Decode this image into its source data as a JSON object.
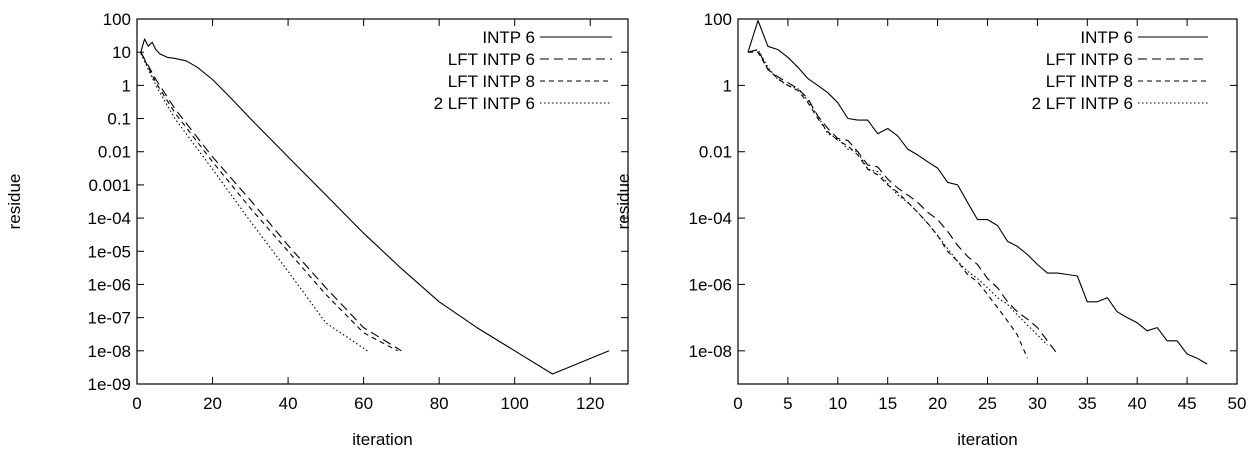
{
  "chart_data": [
    {
      "type": "line",
      "title": "",
      "xlabel": "iteration",
      "ylabel": "residue",
      "xlim": [
        0,
        130
      ],
      "xticks": [
        0,
        20,
        40,
        60,
        80,
        100,
        120
      ],
      "yscale": "log",
      "ylim": [
        1e-09,
        100
      ],
      "ytick_labels": [
        "100",
        "10",
        "1",
        "0.1",
        "0.01",
        "0.001",
        "1e-04",
        "1e-05",
        "1e-06",
        "1e-07",
        "1e-08",
        "1e-09"
      ],
      "grid": false,
      "legend": "top-right",
      "series": [
        {
          "name": "INTP 6",
          "style": "solid",
          "x": [
            1,
            2,
            3,
            4,
            5,
            6,
            8,
            10,
            13,
            16,
            20,
            25,
            30,
            40,
            50,
            60,
            70,
            80,
            90,
            100,
            110,
            125
          ],
          "y": [
            10,
            25,
            15,
            20,
            12,
            9,
            7,
            6.5,
            5.5,
            3.5,
            1.5,
            0.4,
            0.1,
            0.007,
            0.0005,
            3.5e-05,
            3e-06,
            3e-07,
            5e-08,
            1e-08,
            2e-09,
            1e-08
          ]
        },
        {
          "name": "LFT INTP 6",
          "style": "long-dash",
          "x": [
            1,
            5,
            10,
            20,
            30,
            40,
            50,
            60,
            70
          ],
          "y": [
            10,
            1.5,
            0.2,
            0.007,
            0.00035,
            1.5e-05,
            8e-07,
            5e-08,
            1e-08
          ]
        },
        {
          "name": "LFT INTP 8",
          "style": "short-dash",
          "x": [
            1,
            5,
            10,
            20,
            30,
            40,
            50,
            60,
            69
          ],
          "y": [
            10,
            1.2,
            0.15,
            0.005,
            0.0002,
            1e-05,
            5e-07,
            3.5e-08,
            1e-08
          ]
        },
        {
          "name": "2 LFT INTP 6",
          "style": "dotted",
          "x": [
            1,
            5,
            10,
            20,
            30,
            40,
            50,
            61
          ],
          "y": [
            9,
            1,
            0.1,
            0.003,
            8e-05,
            2.5e-06,
            7e-08,
            1e-08
          ]
        }
      ]
    },
    {
      "type": "line",
      "title": "",
      "xlabel": "iteration",
      "ylabel": "residue",
      "xlim": [
        0,
        50
      ],
      "xticks": [
        0,
        5,
        10,
        15,
        20,
        25,
        30,
        35,
        40,
        45,
        50
      ],
      "yscale": "log",
      "ylim": [
        1e-09,
        100
      ],
      "ytick_values": [
        100,
        1,
        0.01,
        0.0001,
        1e-06,
        1e-08
      ],
      "ytick_labels": [
        "100",
        "1",
        "0.01",
        "1e-04",
        "1e-06",
        "1e-08"
      ],
      "grid": false,
      "legend": "top-right",
      "series": [
        {
          "name": "INTP 6",
          "style": "solid",
          "x": [
            1,
            2,
            3,
            4,
            5,
            6,
            7,
            8,
            9,
            10,
            11,
            12,
            13,
            14,
            15,
            16,
            17,
            18,
            19,
            20,
            21,
            22,
            23,
            24,
            25,
            26,
            27,
            28,
            29,
            30,
            31,
            32,
            33,
            34,
            35,
            36,
            37,
            38,
            39,
            40,
            41,
            42,
            43,
            44,
            45,
            46,
            47
          ],
          "y": [
            10,
            90,
            15,
            12,
            7,
            3.5,
            1.6,
            1,
            0.6,
            0.3,
            0.1,
            0.09,
            0.09,
            0.035,
            0.05,
            0.03,
            0.012,
            0.008,
            0.005,
            0.0032,
            0.0012,
            0.001,
            0.0003,
            9e-05,
            9e-05,
            6e-05,
            2e-05,
            1.4e-05,
            8e-06,
            4e-06,
            2.2e-06,
            2.2e-06,
            2e-06,
            1.8e-06,
            3e-07,
            3e-07,
            4e-07,
            1.5e-07,
            1e-07,
            7e-08,
            4e-08,
            5e-08,
            2e-08,
            2e-08,
            8e-09,
            6e-09,
            4e-09
          ]
        },
        {
          "name": "LFT INTP 6",
          "style": "long-dash",
          "x": [
            1,
            2,
            3,
            4,
            5,
            6,
            7,
            8,
            9,
            10,
            11,
            12,
            13,
            14,
            15,
            16,
            17,
            18,
            19,
            20,
            21,
            22,
            23,
            24,
            25,
            26,
            27,
            28,
            29,
            30,
            31,
            32
          ],
          "y": [
            10,
            12,
            3,
            1.8,
            1.2,
            0.8,
            0.4,
            0.12,
            0.05,
            0.025,
            0.022,
            0.01,
            0.004,
            0.0035,
            0.0015,
            0.0008,
            0.0005,
            0.0003,
            0.00015,
            9e-05,
            4e-05,
            1.5e-05,
            7e-06,
            4e-06,
            1.5e-06,
            8e-07,
            3e-07,
            1.5e-07,
            9e-08,
            5e-08,
            2e-08,
            8e-09
          ]
        },
        {
          "name": "LFT INTP 8",
          "style": "short-dash",
          "x": [
            1,
            2,
            3,
            4,
            5,
            6,
            7,
            8,
            9,
            10,
            11,
            12,
            13,
            14,
            15,
            16,
            17,
            18,
            19,
            20,
            21,
            22,
            23,
            24,
            25,
            26,
            27,
            28,
            29
          ],
          "y": [
            10,
            10,
            3,
            1.6,
            1,
            0.7,
            0.3,
            0.1,
            0.04,
            0.022,
            0.015,
            0.008,
            0.003,
            0.002,
            0.001,
            0.0006,
            0.0003,
            0.00015,
            7e-05,
            3e-05,
            1e-05,
            5e-06,
            2e-06,
            1.2e-06,
            5e-07,
            2e-07,
            8e-08,
            3e-08,
            6e-09
          ]
        },
        {
          "name": "2 LFT INTP 6",
          "style": "dotted",
          "x": [
            1,
            2,
            3,
            4,
            5,
            6,
            7,
            8,
            9,
            10,
            11,
            12,
            13,
            14,
            15,
            16,
            17,
            18,
            19,
            20,
            21,
            22,
            23,
            24,
            25,
            26,
            27,
            28,
            29,
            30,
            31
          ],
          "y": [
            10,
            12,
            3.5,
            1.5,
            1,
            0.8,
            0.35,
            0.12,
            0.035,
            0.025,
            0.012,
            0.01,
            0.003,
            0.0025,
            0.0011,
            0.0005,
            0.0003,
            0.00015,
            7e-05,
            3e-05,
            1.2e-05,
            5e-06,
            2.5e-06,
            1.5e-06,
            8e-07,
            4e-07,
            2.5e-07,
            1.2e-07,
            6e-08,
            3e-08,
            1.5e-08
          ]
        }
      ]
    }
  ]
}
